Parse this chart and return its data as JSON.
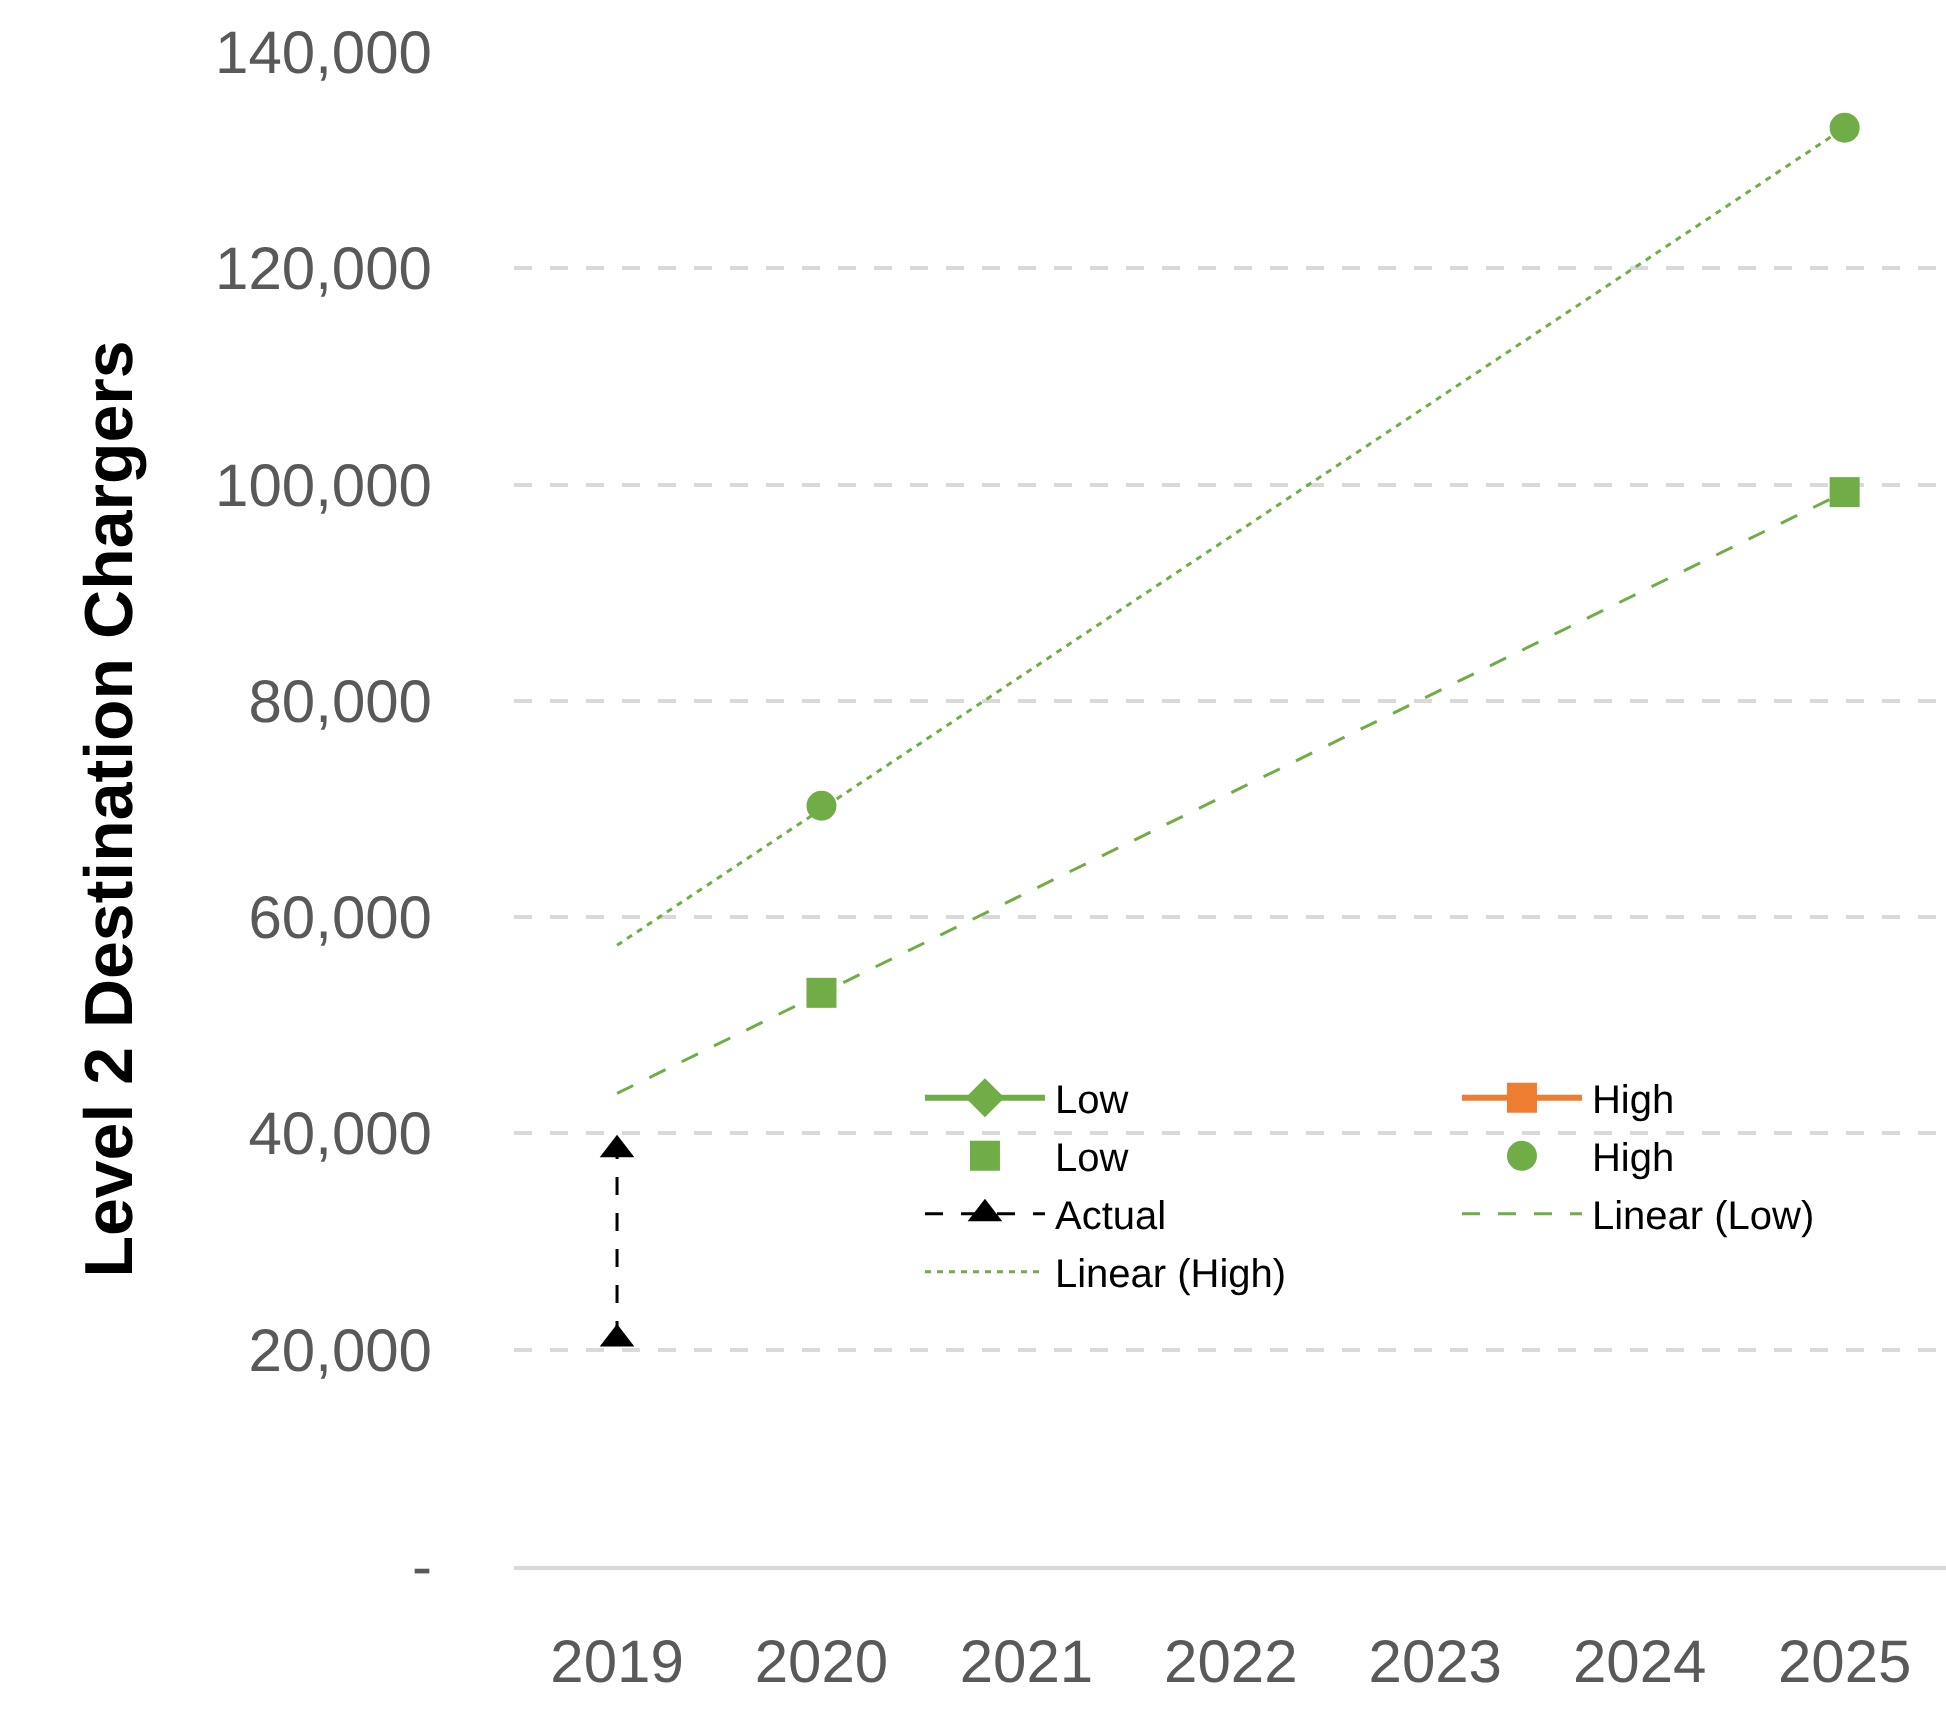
{
  "chart_data": {
    "type": "line",
    "ylabel": "Level 2 Destination Chargers",
    "x": [
      "2020",
      "2021",
      "2022",
      "2023",
      "2024",
      "2025"
    ],
    "series": [
      {
        "name": "Low",
        "color": "#70ad47",
        "marker": "diamond",
        "line_style": "solid",
        "values": [
          null,
          null,
          null,
          null,
          null,
          null
        ]
      },
      {
        "name": "High",
        "color": "#ed7d31",
        "marker": "square",
        "line_style": "solid",
        "values": [
          null,
          null,
          null,
          null,
          null,
          null
        ]
      },
      {
        "name": "Low",
        "type": "scatter",
        "color": "#70ad47",
        "marker": "square",
        "values": [
          53000,
          null,
          null,
          null,
          null,
          99300
        ]
      },
      {
        "name": "High",
        "type": "scatter",
        "color": "#70ad47",
        "marker": "circle",
        "values": [
          70300,
          null,
          null,
          null,
          null,
          133000
        ]
      },
      {
        "name": "Actual",
        "color": "#000000",
        "marker": "triangle",
        "line_style": "dashed",
        "x": [
          "2019",
          "2019"
        ],
        "values": [
          21000,
          38500
        ]
      },
      {
        "name": "Linear (Low)",
        "color": "#70ad47",
        "line_style": "dashed",
        "x": [
          "2019",
          "2025"
        ],
        "values": [
          43700,
          99300
        ]
      },
      {
        "name": "Linear (High)",
        "color": "#70ad47",
        "line_style": "dotted",
        "x": [
          "2019",
          "2025"
        ],
        "values": [
          57400,
          133000
        ]
      }
    ],
    "xlim": [
      "2018-07",
      "2025-07"
    ],
    "xticks": [
      "2019",
      "2020",
      "2021",
      "2022",
      "2023",
      "2024",
      "2025"
    ],
    "ylim": [
      0,
      140000
    ],
    "yticks": [
      {
        "value": 0,
        "label": "-"
      },
      {
        "value": 20000,
        "label": "20,000"
      },
      {
        "value": 40000,
        "label": "40,000"
      },
      {
        "value": 60000,
        "label": "60,000"
      },
      {
        "value": 80000,
        "label": "80,000"
      },
      {
        "value": 100000,
        "label": "100,000"
      },
      {
        "value": 120000,
        "label": "120,000"
      },
      {
        "value": 140000,
        "label": "140,000"
      }
    ],
    "grid": "y",
    "legend": "bottom right"
  }
}
